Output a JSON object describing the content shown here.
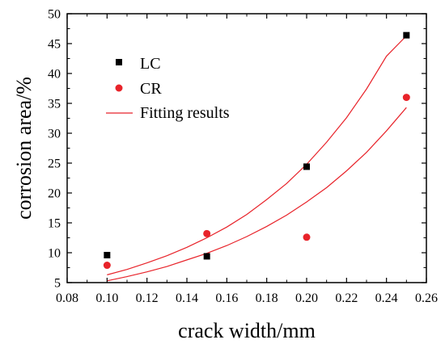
{
  "chart_data": {
    "type": "scatter",
    "xlabel": "crack width/mm",
    "ylabel": "corrosion area/%",
    "xlim": [
      0.08,
      0.26
    ],
    "ylim": [
      5,
      50
    ],
    "x_ticks": [
      0.08,
      0.1,
      0.12,
      0.14,
      0.16,
      0.18,
      0.2,
      0.22,
      0.24,
      0.26
    ],
    "x_tick_labels": [
      "0.08",
      "0.10",
      "0.12",
      "0.14",
      "0.16",
      "0.18",
      "0.20",
      "0.22",
      "0.24",
      "0.26"
    ],
    "y_ticks": [
      5,
      10,
      15,
      20,
      25,
      30,
      35,
      40,
      45,
      50
    ],
    "y_tick_labels": [
      "5",
      "10",
      "15",
      "20",
      "25",
      "30",
      "35",
      "40",
      "45",
      "50"
    ],
    "grid": false,
    "legend_position": "top-left",
    "series": [
      {
        "name": "LC",
        "marker": "square",
        "color": "#000000",
        "x": [
          0.1,
          0.15,
          0.2,
          0.25
        ],
        "y": [
          9.6,
          9.4,
          24.4,
          46.4
        ]
      },
      {
        "name": "CR",
        "marker": "circle",
        "color": "#e8232a",
        "x": [
          0.1,
          0.15,
          0.2,
          0.25
        ],
        "y": [
          7.9,
          13.2,
          12.6,
          36.0
        ]
      }
    ],
    "fits": [
      {
        "name": "Fitting results",
        "color": "#e8232a",
        "x": [
          0.1,
          0.11,
          0.12,
          0.13,
          0.14,
          0.15,
          0.16,
          0.17,
          0.18,
          0.19,
          0.2,
          0.21,
          0.22,
          0.23,
          0.24,
          0.25
        ],
        "y": [
          6.3,
          7.2,
          8.3,
          9.5,
          10.9,
          12.5,
          14.3,
          16.4,
          18.9,
          21.6,
          24.8,
          28.5,
          32.6,
          37.4,
          42.9,
          46.3
        ]
      },
      {
        "name": "",
        "color": "#e8232a",
        "x": [
          0.1,
          0.11,
          0.12,
          0.13,
          0.14,
          0.15,
          0.16,
          0.17,
          0.18,
          0.19,
          0.2,
          0.21,
          0.22,
          0.23,
          0.24,
          0.25
        ],
        "y": [
          5.3,
          6.0,
          6.8,
          7.7,
          8.8,
          9.9,
          11.2,
          12.7,
          14.4,
          16.3,
          18.5,
          20.9,
          23.7,
          26.8,
          30.4,
          34.3
        ]
      }
    ]
  }
}
